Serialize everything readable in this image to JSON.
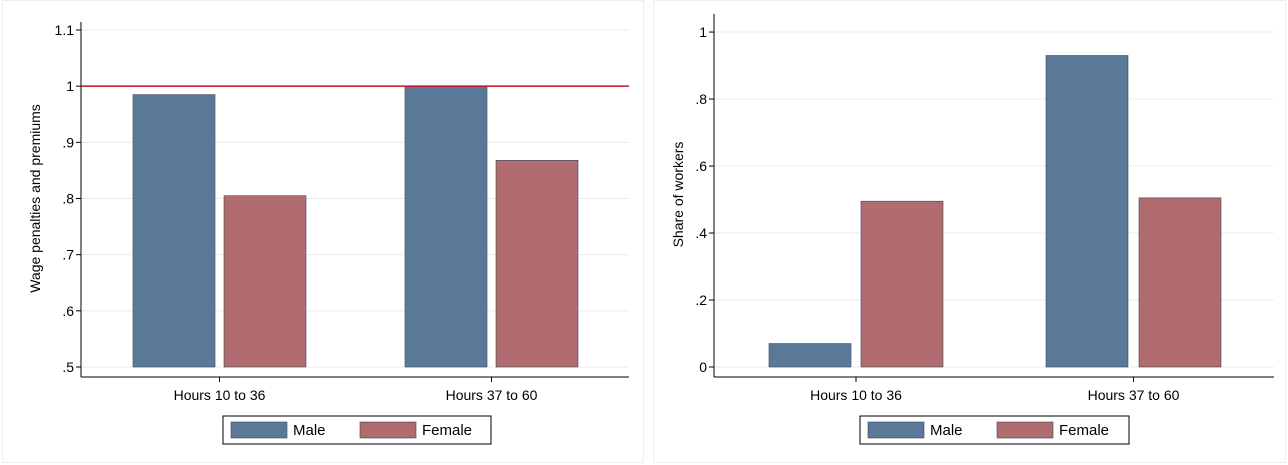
{
  "chart_data": [
    {
      "type": "bar",
      "title": "",
      "xlabel": "",
      "ylabel": "Wage penalties and premiums",
      "categories": [
        "Hours 10 to 36",
        "Hours 37 to 60"
      ],
      "series": [
        {
          "name": "Male",
          "values": [
            0.985,
            1.0
          ],
          "color": "#5a7898"
        },
        {
          "name": "Female",
          "values": [
            0.805,
            0.868
          ],
          "color": "#b06c6e"
        }
      ],
      "ylim": [
        0.5,
        1.1
      ],
      "yticks": [
        0.5,
        0.6,
        0.7,
        0.8,
        0.9,
        1.0,
        1.1
      ],
      "ytick_labels": [
        ".5",
        ".6",
        ".7",
        ".8",
        ".9",
        "1",
        "1.1"
      ],
      "reference_line": {
        "y": 1.0,
        "color": "#c8102e"
      },
      "grid": true,
      "legend_position": "bottom"
    },
    {
      "type": "bar",
      "title": "",
      "xlabel": "",
      "ylabel": "Share of workers",
      "categories": [
        "Hours 10 to 36",
        "Hours 37 to 60"
      ],
      "series": [
        {
          "name": "Male",
          "values": [
            0.07,
            0.93
          ],
          "color": "#5a7898"
        },
        {
          "name": "Female",
          "values": [
            0.495,
            0.505
          ],
          "color": "#b06c6e"
        }
      ],
      "ylim": [
        0,
        1.03
      ],
      "yticks": [
        0,
        0.2,
        0.4,
        0.6,
        0.8,
        1.0
      ],
      "ytick_labels": [
        "0",
        ".2",
        ".4",
        ".6",
        ".8",
        "1"
      ],
      "grid": true,
      "legend_position": "bottom"
    }
  ]
}
